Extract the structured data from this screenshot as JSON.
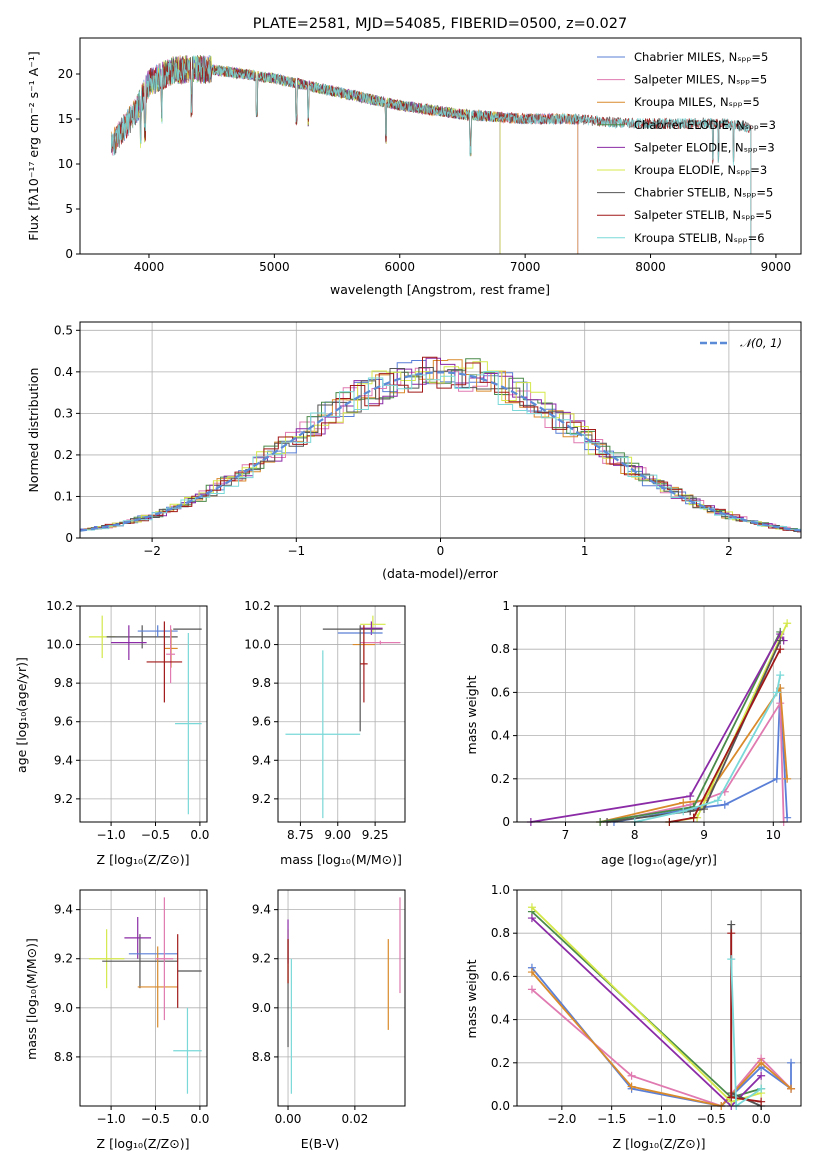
{
  "title": "PLATE=2581, MJD=54085, FIBERID=0500, z=0.027",
  "chart_data": [
    {
      "id": "spectrum",
      "type": "line",
      "xlabel": "wavelength [Angstrom, rest frame]",
      "ylabel": "Flux [fλ10⁻¹⁷ erg cm⁻² s⁻¹ A⁻¹]",
      "xlim": [
        3450,
        9200
      ],
      "ylim": [
        0,
        24
      ],
      "xticks": [
        4000,
        5000,
        6000,
        7000,
        8000,
        9000
      ],
      "yticks": [
        0,
        5,
        10,
        15,
        20
      ],
      "grid": false,
      "legend_position": "top-right",
      "series": [
        {
          "name": "Chabrier MILES, Nₛₚₚ=5",
          "color": "#5a7fd6",
          "x_range": [
            3700,
            7420
          ]
        },
        {
          "name": "Salpeter MILES, Nₛₚₚ=5",
          "color": "#e07ab0",
          "x_range": [
            3700,
            7420
          ]
        },
        {
          "name": "Kroupa MILES, Nₛₚₚ=5",
          "color": "#d98a2b",
          "x_range": [
            3700,
            7420
          ]
        },
        {
          "name": "Chabrier ELODIE, Nₛₚₚ=3",
          "color": "#4a8a4a",
          "x_range": [
            3900,
            6800
          ]
        },
        {
          "name": "Salpeter ELODIE, Nₛₚₚ=3",
          "color": "#8b2ba6",
          "x_range": [
            3900,
            6800
          ]
        },
        {
          "name": "Kroupa ELODIE, Nₛₚₚ=3",
          "color": "#d4e84a",
          "x_range": [
            3900,
            6800
          ]
        },
        {
          "name": "Chabrier STELIB, Nₛₚₚ=5",
          "color": "#555555",
          "x_range": [
            3700,
            8800
          ]
        },
        {
          "name": "Salpeter STELIB, Nₛₚₚ=5",
          "color": "#a01818",
          "x_range": [
            3700,
            8800
          ]
        },
        {
          "name": "Kroupa STELIB, Nₛₚₚ=6",
          "color": "#7ad8d8",
          "x_range": [
            3700,
            8800
          ]
        }
      ],
      "continuum": {
        "x": [
          3700,
          3900,
          4000,
          4200,
          4500,
          5000,
          5500,
          6000,
          6500,
          7000,
          7400,
          7800,
          8200,
          8600,
          8800
        ],
        "y": [
          12,
          16,
          19,
          20.5,
          20.5,
          19.5,
          18,
          16.5,
          15.5,
          15,
          15,
          14.5,
          14.5,
          14.5,
          14
        ]
      }
    },
    {
      "id": "residuals",
      "type": "histogram",
      "xlabel": "(data-model)/error",
      "ylabel": "Normed distribution",
      "xlim": [
        -2.5,
        2.5
      ],
      "ylim": [
        0,
        0.52
      ],
      "xticks": [
        -2,
        -1,
        0,
        1,
        2
      ],
      "yticks": [
        0.0,
        0.1,
        0.2,
        0.3,
        0.4,
        0.5
      ],
      "grid": true,
      "legend": "𝒩(0, 1)",
      "legend_position": "top-right",
      "reference_curve": {
        "name": "𝒩(0, 1)",
        "color": "#5b8bd6",
        "style": "dashed",
        "mean": 0,
        "sigma": 1
      }
    },
    {
      "id": "age-vs-metallicity",
      "type": "errorbar",
      "xlabel": "Z [log₁₀(Z/Z⊙)]",
      "ylabel": "age  [log₁₀(age/yr)]",
      "xlim": [
        -1.35,
        0.08
      ],
      "ylim": [
        9.08,
        10.2
      ],
      "xticks": [
        -1.0,
        -0.5,
        0.0
      ],
      "xticklabels": [
        "−1.0",
        "−0.5",
        "0.0"
      ],
      "yticks": [
        9.2,
        9.4,
        9.6,
        9.8,
        10.0,
        10.2
      ],
      "yticklabels": [
        "9.2",
        "9.4",
        "9.6",
        "9.8",
        "10.0",
        "10.2"
      ],
      "grid": true,
      "points": [
        {
          "color": "#d4e84a",
          "x": [
            -1.25,
            -0.95
          ],
          "y": [
            9.93,
            10.15
          ]
        },
        {
          "color": "#555555",
          "x": [
            -1.05,
            -0.25
          ],
          "y": [
            9.98,
            10.1
          ]
        },
        {
          "color": "#8b2ba6",
          "x": [
            -1.0,
            -0.6
          ],
          "y": [
            9.92,
            10.1
          ]
        },
        {
          "color": "#5a7fd6",
          "x": [
            -0.7,
            -0.25
          ],
          "y": [
            10.04,
            10.1
          ]
        },
        {
          "color": "#d98a2b",
          "x": [
            -0.4,
            -0.25
          ],
          "y": [
            9.88,
            10.08
          ]
        },
        {
          "color": "#e07ab0",
          "x": [
            -0.38,
            -0.28
          ],
          "y": [
            9.8,
            10.1
          ]
        },
        {
          "color": "#555555",
          "x": [
            -0.3,
            0.02
          ],
          "y": [
            10.08,
            10.08
          ]
        },
        {
          "color": "#a01818",
          "x": [
            -0.6,
            -0.2
          ],
          "y": [
            9.7,
            10.12
          ]
        },
        {
          "color": "#7ad8d8",
          "x": [
            -0.28,
            0.02
          ],
          "y": [
            9.12,
            10.06
          ]
        }
      ]
    },
    {
      "id": "age-vs-mass",
      "type": "errorbar",
      "xlabel": "mass [log₁₀(M/M⊙)]",
      "ylabel": "",
      "xlim": [
        8.6,
        9.45
      ],
      "ylim": [
        9.08,
        10.2
      ],
      "xticks": [
        8.75,
        9.0,
        9.25
      ],
      "xticklabels": [
        "8.75",
        "9.00",
        "9.25"
      ],
      "yticks": [
        9.2,
        9.4,
        9.6,
        9.8,
        10.0,
        10.2
      ],
      "yticklabels": [
        "9.2",
        "9.4",
        "9.6",
        "9.8",
        "10.0",
        "10.2"
      ],
      "grid": true,
      "points": [
        {
          "color": "#d4e84a",
          "x": [
            9.15,
            9.32
          ],
          "y": [
            10.06,
            10.15
          ]
        },
        {
          "color": "#555555",
          "x": [
            8.9,
            9.3
          ],
          "y": [
            10.08,
            10.08
          ]
        },
        {
          "color": "#8b2ba6",
          "x": [
            9.15,
            9.3
          ],
          "y": [
            10.05,
            10.12
          ]
        },
        {
          "color": "#5a7fd6",
          "x": [
            9.0,
            9.3
          ],
          "y": [
            10.06,
            10.06
          ]
        },
        {
          "color": "#d98a2b",
          "x": [
            9.1,
            9.25
          ],
          "y": [
            9.9,
            10.1
          ]
        },
        {
          "color": "#e07ab0",
          "x": [
            9.15,
            9.42
          ],
          "y": [
            10.0,
            10.02
          ]
        },
        {
          "color": "#555555",
          "x": [
            9.15,
            9.15
          ],
          "y": [
            9.55,
            10.1
          ]
        },
        {
          "color": "#a01818",
          "x": [
            9.15,
            9.2
          ],
          "y": [
            9.7,
            10.1
          ]
        },
        {
          "color": "#7ad8d8",
          "x": [
            8.65,
            9.15
          ],
          "y": [
            9.1,
            9.97
          ]
        }
      ]
    },
    {
      "id": "mass-weight-vs-age",
      "type": "line",
      "xlabel": "age  [log₁₀(age/yr)]",
      "ylabel": "mass weight",
      "xlim": [
        6.3,
        10.4
      ],
      "ylim": [
        0,
        1.0
      ],
      "xticks": [
        7,
        8,
        9,
        10
      ],
      "yticks": [
        0.0,
        0.2,
        0.4,
        0.6,
        0.8,
        1.0
      ],
      "grid": true,
      "series": [
        {
          "color": "#5a7fd6",
          "x": [
            7.7,
            8.8,
            9.3,
            10.05,
            10.1,
            10.2
          ],
          "y": [
            0.0,
            0.06,
            0.08,
            0.2,
            0.62,
            0.02
          ]
        },
        {
          "color": "#e07ab0",
          "x": [
            7.6,
            8.8,
            9.3,
            10.1,
            10.15
          ],
          "y": [
            0.0,
            0.08,
            0.14,
            0.55,
            0.0
          ]
        },
        {
          "color": "#d98a2b",
          "x": [
            7.5,
            8.7,
            9.0,
            10.1,
            10.2
          ],
          "y": [
            0.0,
            0.09,
            0.1,
            0.62,
            0.2
          ]
        },
        {
          "color": "#4a8a4a",
          "x": [
            7.5,
            8.85,
            10.1
          ],
          "y": [
            0.0,
            0.07,
            0.88
          ]
        },
        {
          "color": "#8b2ba6",
          "x": [
            6.5,
            8.8,
            10.1,
            10.15
          ],
          "y": [
            0.0,
            0.12,
            0.87,
            0.84
          ]
        },
        {
          "color": "#d4e84a",
          "x": [
            8.5,
            8.9,
            10.2
          ],
          "y": [
            0.0,
            0.02,
            0.92
          ]
        },
        {
          "color": "#555555",
          "x": [
            7.6,
            8.8,
            9.0,
            10.1
          ],
          "y": [
            0.0,
            0.05,
            0.06,
            0.84
          ]
        },
        {
          "color": "#a01818",
          "x": [
            8.5,
            8.85,
            10.1
          ],
          "y": [
            0.0,
            0.02,
            0.8
          ]
        },
        {
          "color": "#7ad8d8",
          "x": [
            8.0,
            8.7,
            9.2,
            10.05,
            10.1
          ],
          "y": [
            0.0,
            0.05,
            0.1,
            0.6,
            0.68
          ]
        }
      ]
    },
    {
      "id": "mass-vs-metallicity",
      "type": "errorbar",
      "xlabel": "Z [log₁₀(Z/Z⊙)]",
      "ylabel": "mass [log₁₀(M/M⊙)]",
      "xlim": [
        -1.35,
        0.08
      ],
      "ylim": [
        8.6,
        9.48
      ],
      "xticks": [
        -1.0,
        -0.5,
        0.0
      ],
      "xticklabels": [
        "−1.0",
        "−0.5",
        "0.0"
      ],
      "yticks": [
        8.8,
        9.0,
        9.2,
        9.4
      ],
      "yticklabels": [
        "8.8",
        "9.0",
        "9.2",
        "9.4"
      ],
      "grid": true,
      "points": [
        {
          "color": "#d4e84a",
          "x": [
            -1.25,
            -0.85
          ],
          "y": [
            9.08,
            9.32
          ]
        },
        {
          "color": "#555555",
          "x": [
            -1.1,
            -0.25
          ],
          "y": [
            9.08,
            9.3
          ]
        },
        {
          "color": "#8b2ba6",
          "x": [
            -0.85,
            -0.55
          ],
          "y": [
            9.2,
            9.37
          ]
        },
        {
          "color": "#5a7fd6",
          "x": [
            -0.8,
            -0.25
          ],
          "y": [
            9.22,
            9.22
          ]
        },
        {
          "color": "#d98a2b",
          "x": [
            -0.7,
            -0.25
          ],
          "y": [
            8.92,
            9.25
          ]
        },
        {
          "color": "#e07ab0",
          "x": [
            -0.5,
            -0.3
          ],
          "y": [
            8.95,
            9.45
          ]
        },
        {
          "color": "#555555",
          "x": [
            -0.25,
            0.02
          ],
          "y": [
            9.15,
            9.15
          ]
        },
        {
          "color": "#a01818",
          "x": [
            -0.25,
            -0.25
          ],
          "y": [
            9.0,
            9.3
          ]
        },
        {
          "color": "#7ad8d8",
          "x": [
            -0.3,
            0.02
          ],
          "y": [
            8.65,
            9.0
          ]
        }
      ]
    },
    {
      "id": "mass-vs-ebv",
      "type": "errorbar",
      "xlabel": "E(B-V)",
      "ylabel": "",
      "xlim": [
        -0.003,
        0.035
      ],
      "ylim": [
        8.6,
        9.48
      ],
      "xticks": [
        0.0,
        0.02
      ],
      "xticklabels": [
        "0.00",
        "0.02"
      ],
      "yticks": [
        8.8,
        9.0,
        9.2,
        9.4
      ],
      "yticklabels": [
        "8.8",
        "9.0",
        "9.2",
        "9.4"
      ],
      "grid": true,
      "points": [
        {
          "color": "#d4e84a",
          "x": [
            0.0,
            0.0
          ],
          "y": [
            9.1,
            9.32
          ]
        },
        {
          "color": "#555555",
          "x": [
            0.0,
            0.0
          ],
          "y": [
            8.84,
            9.28
          ]
        },
        {
          "color": "#8b2ba6",
          "x": [
            0.0,
            0.0
          ],
          "y": [
            9.18,
            9.36
          ]
        },
        {
          "color": "#a01818",
          "x": [
            0.0,
            0.0
          ],
          "y": [
            9.1,
            9.28
          ]
        },
        {
          "color": "#d98a2b",
          "x": [
            0.03,
            0.03
          ],
          "y": [
            8.91,
            9.28
          ]
        },
        {
          "color": "#e07ab0",
          "x": [
            0.0335,
            0.0335
          ],
          "y": [
            9.06,
            9.45
          ]
        },
        {
          "color": "#7ad8d8",
          "x": [
            0.001,
            0.001
          ],
          "y": [
            8.65,
            9.2
          ]
        }
      ]
    },
    {
      "id": "mass-weight-vs-metallicity",
      "type": "line",
      "xlabel": "Z [log₁₀(Z/Z⊙)]",
      "ylabel": "mass weight",
      "xlim": [
        -2.45,
        0.4
      ],
      "ylim": [
        0,
        1.0
      ],
      "xticks": [
        -2.0,
        -1.5,
        -1.0,
        -0.5,
        0.0
      ],
      "xticklabels": [
        "−2.0",
        "−1.5",
        "−1.0",
        "−0.5",
        "0.0"
      ],
      "yticks": [
        0.0,
        0.2,
        0.4,
        0.6,
        0.8,
        1.0
      ],
      "yticklabels": [
        "0.0",
        "0.2",
        "0.4",
        "0.6",
        "0.8",
        "1.0"
      ],
      "grid": true,
      "series": [
        {
          "color": "#5a7fd6",
          "x": [
            -2.3,
            -1.3,
            -0.4,
            0.0,
            0.3,
            0.3
          ],
          "y": [
            0.64,
            0.08,
            0.0,
            0.18,
            0.08,
            0.2
          ]
        },
        {
          "color": "#e07ab0",
          "x": [
            -2.3,
            -1.3,
            -0.4,
            0.0,
            0.3
          ],
          "y": [
            0.54,
            0.14,
            0.0,
            0.22,
            0.08
          ]
        },
        {
          "color": "#d98a2b",
          "x": [
            -2.3,
            -1.3,
            -0.4,
            0.0,
            0.3
          ],
          "y": [
            0.62,
            0.09,
            0.0,
            0.2,
            0.08
          ]
        },
        {
          "color": "#4a8a4a",
          "x": [
            -2.3,
            -0.3,
            0.0
          ],
          "y": [
            0.9,
            0.04,
            0.08
          ]
        },
        {
          "color": "#8b2ba6",
          "x": [
            -2.3,
            -0.3,
            0.0
          ],
          "y": [
            0.87,
            0.0,
            0.14
          ]
        },
        {
          "color": "#d4e84a",
          "x": [
            -2.3,
            -0.3,
            0.0
          ],
          "y": [
            0.92,
            0.02,
            0.06
          ]
        },
        {
          "color": "#555555",
          "x": [
            -0.3,
            -0.3,
            0.0
          ],
          "y": [
            0.84,
            0.06,
            0.0
          ]
        },
        {
          "color": "#a01818",
          "x": [
            -0.3,
            -0.3,
            0.0
          ],
          "y": [
            0.8,
            0.04,
            0.02
          ]
        },
        {
          "color": "#7ad8d8",
          "x": [
            -0.3,
            -0.25,
            0.0
          ],
          "y": [
            0.68,
            0.0,
            0.08
          ]
        }
      ]
    }
  ]
}
